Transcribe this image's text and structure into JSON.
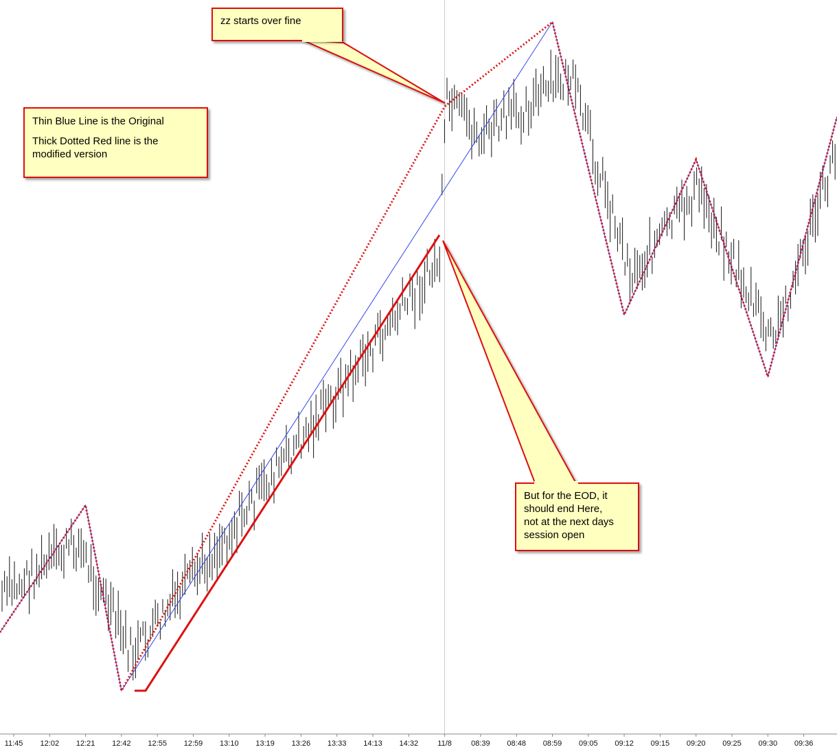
{
  "chart_data": {
    "type": "bar",
    "style": "ohlc-price-bars",
    "x_tick_labels": [
      "11:45",
      "12:02",
      "12:21",
      "12:42",
      "12:55",
      "12:59",
      "13:10",
      "13:19",
      "13:26",
      "13:33",
      "14:13",
      "14:32",
      "11/8",
      "08:39",
      "08:48",
      "08:59",
      "09:05",
      "09:12",
      "09:15",
      "09:20",
      "09:25",
      "09:30",
      "09:36"
    ],
    "session_break_label": "11/8",
    "grid": false,
    "legend": "none",
    "series": [
      {
        "color": "#3344ee",
        "style": "thin-solid",
        "pivots": [
          {
            "x": "start",
            "y": 920
          },
          {
            "x": "12:21",
            "y": 735
          },
          {
            "x": "12:42",
            "y": 1005
          },
          {
            "x": "08:59",
            "y": 32
          },
          {
            "x": "09:12",
            "y": 458
          },
          {
            "x": "09:20",
            "y": 232
          },
          {
            "x": "09:30",
            "y": 548
          },
          {
            "x": "end",
            "y": 170
          }
        ]
      },
      {
        "color": "#dd1111",
        "style": "thick-dotted",
        "pivots": [
          {
            "x": "start",
            "y": 920
          },
          {
            "x": "12:21",
            "y": 735
          },
          {
            "x": "12:42",
            "y": 1005
          },
          {
            "x": "11/8",
            "y": 155
          },
          {
            "x": "08:59",
            "y": 32
          },
          {
            "x": "09:12",
            "y": 458
          },
          {
            "x": "09:20",
            "y": 232
          },
          {
            "x": "09:30",
            "y": 548
          },
          {
            "x": "end",
            "y": 170
          }
        ]
      }
    ],
    "annotations": {
      "legend_note_line1": "Thin Blue Line is the Original",
      "legend_note_line2": "Thick Dotted Red line is the",
      "legend_note_line3": "modified version",
      "zz_note": "zz starts over fine",
      "eod_note_line1": "But for the EOD, it",
      "eod_note_line2": "should end Here,",
      "eod_note_line3": "not at the next days",
      "eod_note_line4": "session open"
    },
    "colors": {
      "note_fill": "#ffffc0",
      "note_border": "#dd1111",
      "bars": "#111111",
      "session_line": "#c8c8c8"
    }
  }
}
